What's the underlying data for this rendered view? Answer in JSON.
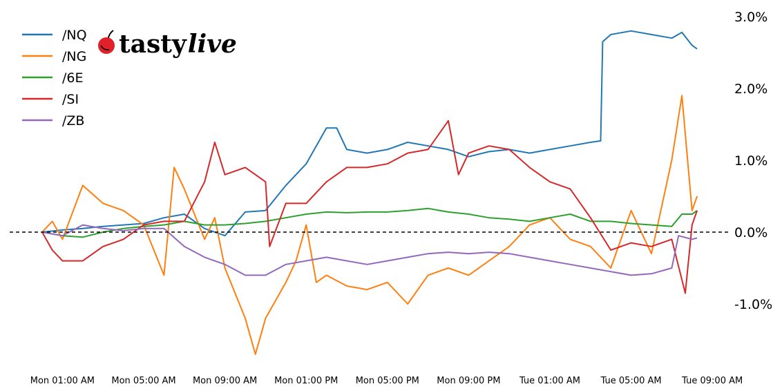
{
  "logo": {
    "text_main": "tasty",
    "text_accent": "live",
    "cherry_color": "#e0202a"
  },
  "chart_data": {
    "type": "line",
    "title": "",
    "xlabel": "",
    "ylabel": "",
    "y_unit": "%",
    "ylim": [
      -1.9,
      3.0
    ],
    "y_ticks": [
      "3.0%",
      "2.0%",
      "1.0%",
      "0.0%",
      "-1.0%"
    ],
    "y_tick_values": [
      3.0,
      2.0,
      1.0,
      0.0,
      -1.0
    ],
    "y_axis_side": "right",
    "x_ticks": [
      "Mon 01:00 AM",
      "Mon 05:00 AM",
      "Mon 09:00 AM",
      "Mon 01:00 PM",
      "Mon 05:00 PM",
      "Mon 09:00 PM",
      "Tue 01:00 AM",
      "Tue 05:00 AM",
      "Tue 09:00 AM"
    ],
    "reference_line": {
      "y": 0.0,
      "style": "dashed",
      "color": "#000000"
    },
    "grid": false,
    "legend_position": "top-left",
    "series": [
      {
        "name": "/NQ",
        "color": "#1f77b4",
        "points": [
          [
            "Mon 00:00",
            0
          ],
          [
            "Mon 01:00",
            0.03
          ],
          [
            "Mon 02:00",
            0.05
          ],
          [
            "Mon 03:00",
            0.08
          ],
          [
            "Mon 04:00",
            0.1
          ],
          [
            "Mon 05:00",
            0.12
          ],
          [
            "Mon 06:00",
            0.2
          ],
          [
            "Mon 07:00",
            0.25
          ],
          [
            "Mon 08:00",
            0.05
          ],
          [
            "Mon 09:00",
            -0.05
          ],
          [
            "Mon 10:00",
            0.28
          ],
          [
            "Mon 11:00",
            0.3
          ],
          [
            "Mon 12:00",
            0.65
          ],
          [
            "Mon 13:00",
            0.95
          ],
          [
            "Mon 14:00",
            1.45
          ],
          [
            "Mon 14:30",
            1.45
          ],
          [
            "Mon 15:00",
            1.15
          ],
          [
            "Mon 16:00",
            1.1
          ],
          [
            "Mon 17:00",
            1.15
          ],
          [
            "Mon 18:00",
            1.25
          ],
          [
            "Mon 19:00",
            1.2
          ],
          [
            "Mon 20:00",
            1.15
          ],
          [
            "Mon 21:00",
            1.05
          ],
          [
            "Mon 22:00",
            1.12
          ],
          [
            "Mon 23:00",
            1.15
          ],
          [
            "Tue 00:00",
            1.1
          ],
          [
            "Tue 01:00",
            1.15
          ],
          [
            "Tue 02:00",
            1.2
          ],
          [
            "Tue 03:00",
            1.25
          ],
          [
            "Tue 03:30",
            1.27
          ],
          [
            "Tue 03:36",
            2.65
          ],
          [
            "Tue 04:00",
            2.75
          ],
          [
            "Tue 05:00",
            2.8
          ],
          [
            "Tue 06:00",
            2.75
          ],
          [
            "Tue 07:00",
            2.7
          ],
          [
            "Tue 07:30",
            2.78
          ],
          [
            "Tue 08:00",
            2.6
          ],
          [
            "Tue 08:15",
            2.55
          ]
        ]
      },
      {
        "name": "/NG",
        "color": "#ff7f0e",
        "points": [
          [
            "Mon 00:00",
            0
          ],
          [
            "Mon 00:30",
            0.15
          ],
          [
            "Mon 01:00",
            -0.1
          ],
          [
            "Mon 02:00",
            0.65
          ],
          [
            "Mon 03:00",
            0.4
          ],
          [
            "Mon 04:00",
            0.3
          ],
          [
            "Mon 05:00",
            0.1
          ],
          [
            "Mon 06:00",
            -0.6
          ],
          [
            "Mon 06:30",
            0.9
          ],
          [
            "Mon 07:00",
            0.6
          ],
          [
            "Mon 08:00",
            -0.1
          ],
          [
            "Mon 08:30",
            0.2
          ],
          [
            "Mon 09:00",
            -0.5
          ],
          [
            "Mon 10:00",
            -1.2
          ],
          [
            "Mon 10:30",
            -1.7
          ],
          [
            "Mon 11:00",
            -1.2
          ],
          [
            "Mon 12:00",
            -0.7
          ],
          [
            "Mon 12:30",
            -0.4
          ],
          [
            "Mon 13:00",
            0.1
          ],
          [
            "Mon 13:30",
            -0.7
          ],
          [
            "Mon 14:00",
            -0.6
          ],
          [
            "Mon 15:00",
            -0.75
          ],
          [
            "Mon 16:00",
            -0.8
          ],
          [
            "Mon 17:00",
            -0.7
          ],
          [
            "Mon 18:00",
            -1.0
          ],
          [
            "Mon 19:00",
            -0.6
          ],
          [
            "Mon 20:00",
            -0.5
          ],
          [
            "Mon 21:00",
            -0.6
          ],
          [
            "Mon 22:00",
            -0.4
          ],
          [
            "Mon 23:00",
            -0.2
          ],
          [
            "Tue 00:00",
            0.1
          ],
          [
            "Tue 01:00",
            0.2
          ],
          [
            "Tue 02:00",
            -0.1
          ],
          [
            "Tue 03:00",
            -0.2
          ],
          [
            "Tue 04:00",
            -0.5
          ],
          [
            "Tue 05:00",
            0.3
          ],
          [
            "Tue 06:00",
            -0.3
          ],
          [
            "Tue 07:00",
            1.0
          ],
          [
            "Tue 07:30",
            1.9
          ],
          [
            "Tue 08:00",
            0.3
          ],
          [
            "Tue 08:15",
            0.5
          ]
        ]
      },
      {
        "name": "/6E",
        "color": "#2ca02c",
        "points": [
          [
            "Mon 00:00",
            0
          ],
          [
            "Mon 01:00",
            -0.05
          ],
          [
            "Mon 02:00",
            -0.07
          ],
          [
            "Mon 03:00",
            0.0
          ],
          [
            "Mon 04:00",
            0.05
          ],
          [
            "Mon 05:00",
            0.08
          ],
          [
            "Mon 06:00",
            0.1
          ],
          [
            "Mon 07:00",
            0.15
          ],
          [
            "Mon 08:00",
            0.1
          ],
          [
            "Mon 09:00",
            0.1
          ],
          [
            "Mon 10:00",
            0.12
          ],
          [
            "Mon 11:00",
            0.15
          ],
          [
            "Mon 12:00",
            0.2
          ],
          [
            "Mon 13:00",
            0.25
          ],
          [
            "Mon 14:00",
            0.28
          ],
          [
            "Mon 15:00",
            0.27
          ],
          [
            "Mon 16:00",
            0.28
          ],
          [
            "Mon 17:00",
            0.28
          ],
          [
            "Mon 18:00",
            0.3
          ],
          [
            "Mon 19:00",
            0.33
          ],
          [
            "Mon 20:00",
            0.28
          ],
          [
            "Mon 21:00",
            0.25
          ],
          [
            "Mon 22:00",
            0.2
          ],
          [
            "Mon 23:00",
            0.18
          ],
          [
            "Tue 00:00",
            0.15
          ],
          [
            "Tue 01:00",
            0.2
          ],
          [
            "Tue 02:00",
            0.25
          ],
          [
            "Tue 03:00",
            0.15
          ],
          [
            "Tue 04:00",
            0.15
          ],
          [
            "Tue 05:00",
            0.12
          ],
          [
            "Tue 06:00",
            0.1
          ],
          [
            "Tue 07:00",
            0.08
          ],
          [
            "Tue 07:30",
            0.25
          ],
          [
            "Tue 08:00",
            0.25
          ],
          [
            "Tue 08:15",
            0.3
          ]
        ]
      },
      {
        "name": "/SI",
        "color": "#d62728",
        "points": [
          [
            "Mon 00:00",
            0
          ],
          [
            "Mon 00:30",
            -0.25
          ],
          [
            "Mon 01:00",
            -0.4
          ],
          [
            "Mon 02:00",
            -0.4
          ],
          [
            "Mon 03:00",
            -0.2
          ],
          [
            "Mon 04:00",
            -0.1
          ],
          [
            "Mon 05:00",
            0.1
          ],
          [
            "Mon 06:00",
            0.15
          ],
          [
            "Mon 07:00",
            0.15
          ],
          [
            "Mon 08:00",
            0.7
          ],
          [
            "Mon 08:30",
            1.25
          ],
          [
            "Mon 09:00",
            0.8
          ],
          [
            "Mon 10:00",
            0.9
          ],
          [
            "Mon 11:00",
            0.7
          ],
          [
            "Mon 11:12",
            -0.2
          ],
          [
            "Mon 12:00",
            0.4
          ],
          [
            "Mon 13:00",
            0.4
          ],
          [
            "Mon 14:00",
            0.7
          ],
          [
            "Mon 15:00",
            0.9
          ],
          [
            "Mon 16:00",
            0.9
          ],
          [
            "Mon 17:00",
            0.95
          ],
          [
            "Mon 18:00",
            1.1
          ],
          [
            "Mon 19:00",
            1.15
          ],
          [
            "Mon 20:00",
            1.55
          ],
          [
            "Mon 20:30",
            0.8
          ],
          [
            "Mon 21:00",
            1.1
          ],
          [
            "Mon 22:00",
            1.2
          ],
          [
            "Mon 23:00",
            1.15
          ],
          [
            "Tue 00:00",
            0.9
          ],
          [
            "Tue 01:00",
            0.7
          ],
          [
            "Tue 02:00",
            0.6
          ],
          [
            "Tue 03:00",
            0.2
          ],
          [
            "Tue 04:00",
            -0.25
          ],
          [
            "Tue 05:00",
            -0.15
          ],
          [
            "Tue 06:00",
            -0.2
          ],
          [
            "Tue 07:00",
            -0.1
          ],
          [
            "Tue 07:40",
            -0.85
          ],
          [
            "Tue 08:00",
            0.1
          ],
          [
            "Tue 08:15",
            0.3
          ]
        ]
      },
      {
        "name": "/ZB",
        "color": "#9467bd",
        "points": [
          [
            "Mon 00:00",
            0
          ],
          [
            "Mon 01:00",
            -0.05
          ],
          [
            "Mon 02:00",
            0.1
          ],
          [
            "Mon 03:00",
            0.05
          ],
          [
            "Mon 04:00",
            0.02
          ],
          [
            "Mon 05:00",
            0.05
          ],
          [
            "Mon 06:00",
            0.05
          ],
          [
            "Mon 07:00",
            -0.2
          ],
          [
            "Mon 08:00",
            -0.35
          ],
          [
            "Mon 09:00",
            -0.45
          ],
          [
            "Mon 10:00",
            -0.6
          ],
          [
            "Mon 11:00",
            -0.6
          ],
          [
            "Mon 12:00",
            -0.45
          ],
          [
            "Mon 13:00",
            -0.4
          ],
          [
            "Mon 14:00",
            -0.35
          ],
          [
            "Mon 15:00",
            -0.4
          ],
          [
            "Mon 16:00",
            -0.45
          ],
          [
            "Mon 17:00",
            -0.4
          ],
          [
            "Mon 18:00",
            -0.35
          ],
          [
            "Mon 19:00",
            -0.3
          ],
          [
            "Mon 20:00",
            -0.28
          ],
          [
            "Mon 21:00",
            -0.3
          ],
          [
            "Mon 22:00",
            -0.28
          ],
          [
            "Mon 23:00",
            -0.3
          ],
          [
            "Tue 00:00",
            -0.35
          ],
          [
            "Tue 01:00",
            -0.4
          ],
          [
            "Tue 02:00",
            -0.45
          ],
          [
            "Tue 03:00",
            -0.5
          ],
          [
            "Tue 04:00",
            -0.55
          ],
          [
            "Tue 05:00",
            -0.6
          ],
          [
            "Tue 06:00",
            -0.58
          ],
          [
            "Tue 07:00",
            -0.5
          ],
          [
            "Tue 07:20",
            -0.05
          ],
          [
            "Tue 08:00",
            -0.1
          ],
          [
            "Tue 08:15",
            -0.08
          ]
        ]
      }
    ]
  }
}
